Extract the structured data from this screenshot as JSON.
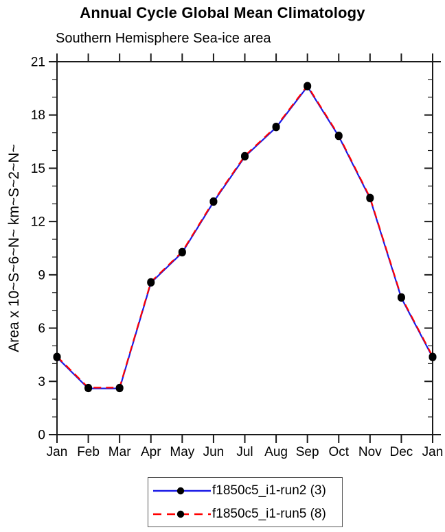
{
  "chart_data": {
    "type": "line",
    "title": "Annual Cycle Global Mean Climatology",
    "subtitle": "Southern Hemisphere Sea-ice area",
    "ylabel": "Area x 10~S~6~N~ km~S~2~N~",
    "categories": [
      "Jan",
      "Feb",
      "Mar",
      "Apr",
      "May",
      "Jun",
      "Jul",
      "Aug",
      "Sep",
      "Oct",
      "Nov",
      "Dec",
      "Jan"
    ],
    "ylim": [
      0,
      21
    ],
    "y_major_ticks": [
      0,
      3,
      6,
      9,
      12,
      15,
      18,
      21
    ],
    "y_minor_step": 1,
    "grid": false,
    "legend_position": "bottom-center",
    "axis_color": "#1a1a1a",
    "marker_color": "#000000",
    "series": [
      {
        "name": "f1850c5_i1-run2 (3)",
        "color": "#1a1ae6",
        "style": "solid",
        "marker": "filled-circle",
        "values": [
          4.35,
          2.6,
          2.6,
          8.55,
          10.25,
          13.1,
          15.65,
          17.3,
          19.6,
          16.8,
          13.3,
          7.7,
          4.35
        ]
      },
      {
        "name": "f1850c5_i1-run5 (8)",
        "color": "#ff0000",
        "style": "dashed",
        "marker": "filled-circle",
        "values": [
          4.4,
          2.65,
          2.65,
          8.6,
          10.3,
          13.15,
          15.7,
          17.35,
          19.65,
          16.85,
          13.35,
          7.75,
          4.4
        ]
      }
    ]
  }
}
